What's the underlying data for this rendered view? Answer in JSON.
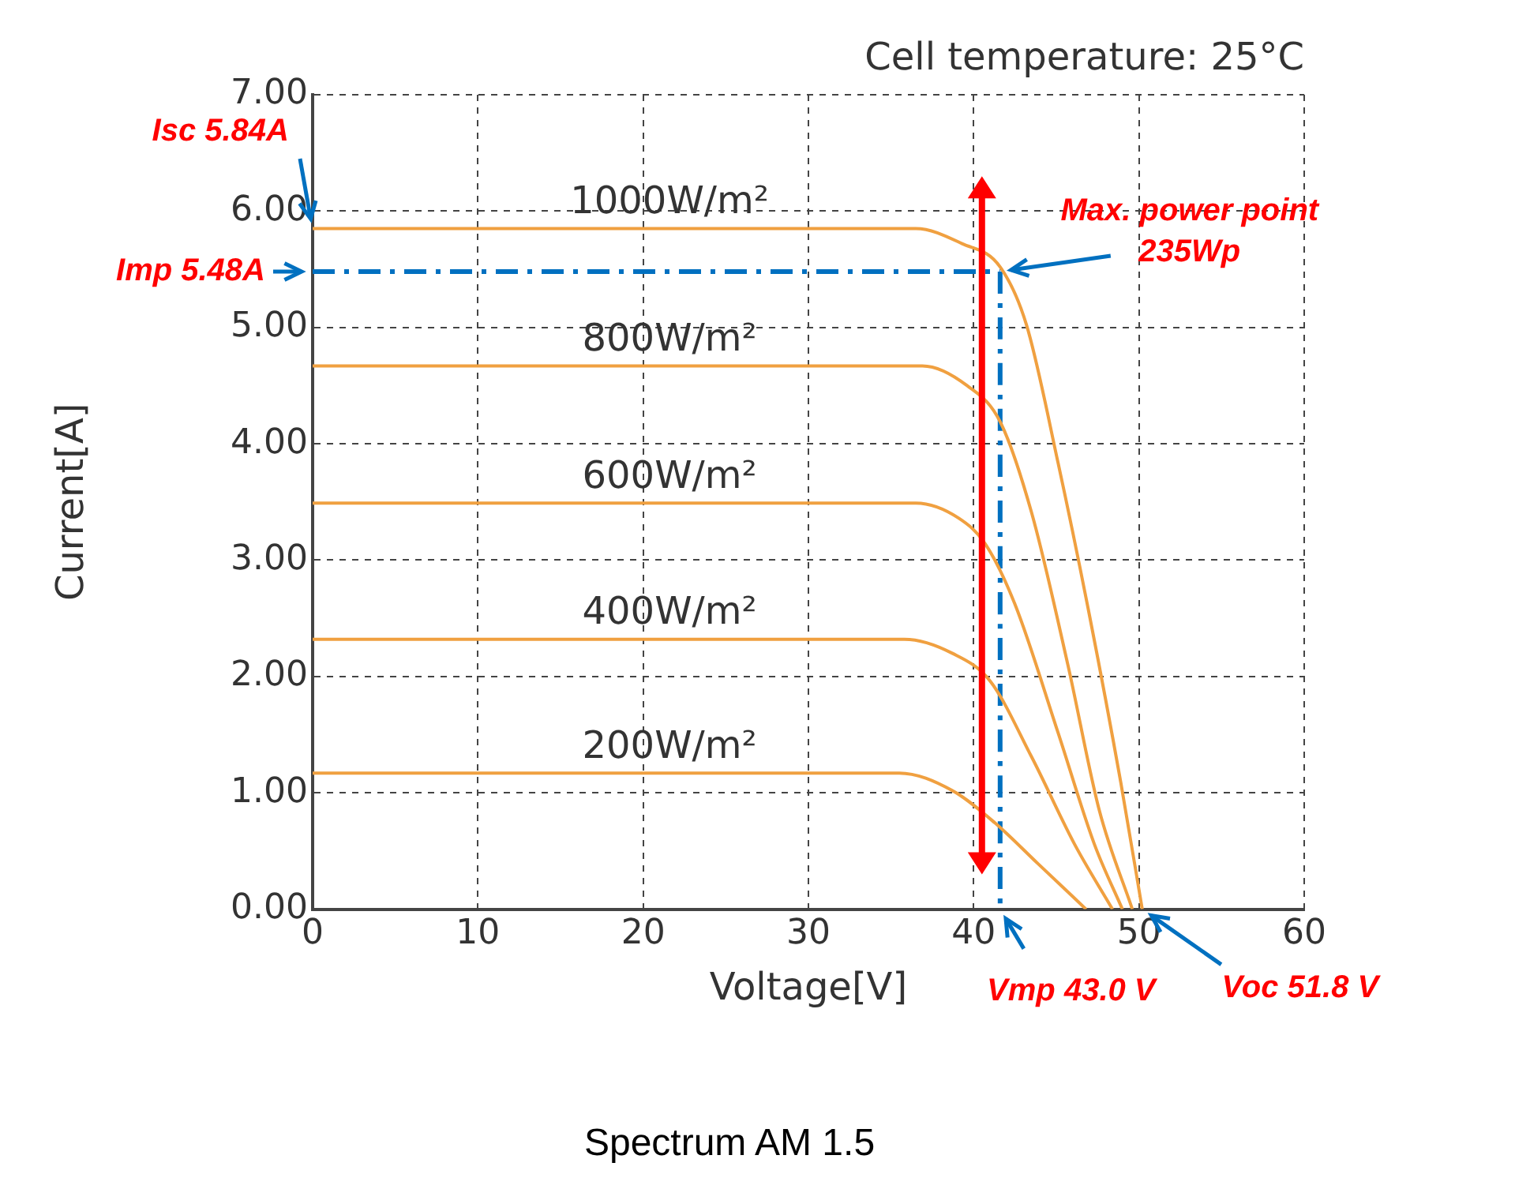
{
  "chart_data": {
    "type": "line",
    "subtitle": "Cell temperature: 25°C",
    "xlabel": "Voltage[V]",
    "ylabel": "Current[A]",
    "xlim": [
      0,
      60
    ],
    "xticks": [
      0,
      10,
      20,
      30,
      40,
      50,
      60
    ],
    "ylim": [
      0,
      7
    ],
    "yticks": [
      {
        "value": 0,
        "label": "0.00"
      },
      {
        "value": 1,
        "label": "1.00"
      },
      {
        "value": 2,
        "label": "2.00"
      },
      {
        "value": 3,
        "label": "3.00"
      },
      {
        "value": 4,
        "label": "4.00"
      },
      {
        "value": 5,
        "label": "5.00"
      },
      {
        "value": 6,
        "label": "6.00"
      },
      {
        "value": 7,
        "label": "7.00"
      }
    ],
    "grid": true,
    "legend": false,
    "marker": "none",
    "line_style": "solid",
    "series": [
      {
        "name": "1000W/m²",
        "color": "#f0a040",
        "x": [
          0,
          36.5,
          39.3,
          41.6,
          43.2,
          45.1,
          47.0,
          48.9,
          50.2
        ],
        "values": [
          5.85,
          5.85,
          5.72,
          5.52,
          5.02,
          3.84,
          2.53,
          1.09,
          0
        ]
      },
      {
        "name": "800W/m²",
        "color": "#f0a040",
        "x": [
          0,
          36.9,
          39.6,
          41.6,
          43.5,
          45.7,
          47.6,
          49.6
        ],
        "values": [
          4.67,
          4.67,
          4.5,
          4.19,
          3.41,
          2.1,
          0.85,
          0
        ]
      },
      {
        "name": "600W/m²",
        "color": "#f0a040",
        "x": [
          0,
          36.5,
          39.1,
          40.7,
          42.5,
          45.1,
          47.3,
          49.0
        ],
        "values": [
          3.49,
          3.49,
          3.36,
          3.14,
          2.62,
          1.52,
          0.56,
          0
        ]
      },
      {
        "name": "400W/m²",
        "color": "#f0a040",
        "x": [
          0,
          35.8,
          38.7,
          41.0,
          43.5,
          46.1,
          48.4
        ],
        "values": [
          2.32,
          2.32,
          2.2,
          1.96,
          1.31,
          0.56,
          0
        ]
      },
      {
        "name": "200W/m²",
        "color": "#f0a040",
        "x": [
          0,
          35.5,
          38.7,
          41.3,
          43.9,
          46.8
        ],
        "values": [
          1.17,
          1.17,
          1.02,
          0.74,
          0.39,
          0
        ]
      },
      {
        "color": "#0070c0",
        "line_style": "dashed",
        "x": [
          0,
          41.6
        ],
        "values": [
          5.48,
          5.48
        ]
      },
      {
        "color": "#0070c0",
        "line_style": "dashed",
        "x": [
          41.6,
          41.6
        ],
        "values": [
          5.48,
          0
        ]
      }
    ],
    "annotations": [
      {
        "text": "Isc 5.84A",
        "x": 0,
        "y": 5.84
      },
      {
        "text": "Imp 5.48A",
        "x": 0,
        "y": 5.48
      },
      {
        "text": "Max. power point 235Wp",
        "x": 41.6,
        "y": 5.48
      },
      {
        "text": "Vmp 43.0 V",
        "x": 41.6,
        "y": 0
      },
      {
        "text": "Voc 51.8 V",
        "x": 50.2,
        "y": 0
      },
      "Spectrum AM 1.5"
    ]
  }
}
